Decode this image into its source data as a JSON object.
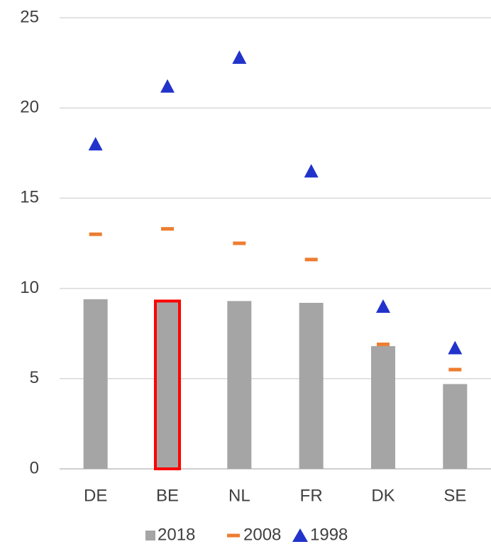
{
  "chart_data": {
    "type": "bar",
    "categories": [
      "DE",
      "BE",
      "NL",
      "FR",
      "DK",
      "SE"
    ],
    "series": [
      {
        "name": "2018",
        "type": "bar",
        "color": "#a5a5a5",
        "values": [
          9.4,
          9.3,
          9.3,
          9.2,
          6.8,
          4.7
        ]
      },
      {
        "name": "2008",
        "type": "dash",
        "color": "#ed7d31",
        "values": [
          13.0,
          13.3,
          12.5,
          11.6,
          6.9,
          5.5
        ]
      },
      {
        "name": "1998",
        "type": "triangle",
        "color": "#2233cc",
        "values": [
          18.0,
          21.2,
          22.8,
          16.5,
          9.0,
          6.7
        ]
      }
    ],
    "highlight": {
      "index": 1,
      "color": "#ff0000"
    },
    "ylim": [
      0,
      25
    ],
    "yticks": [
      0,
      5,
      10,
      15,
      20,
      25
    ],
    "grid": true,
    "legend": "bottom"
  }
}
